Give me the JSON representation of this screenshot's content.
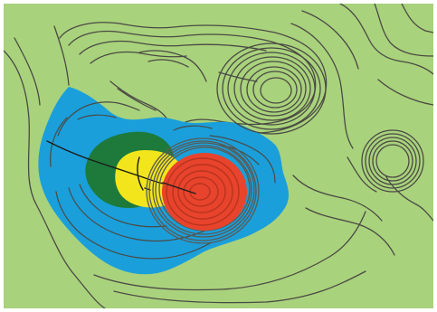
{
  "map": {
    "background_color": "#a9d27c",
    "contour_color": "#4a4a44",
    "zones": [
      {
        "name": "outer-zone",
        "color": "#1a9fdb"
      },
      {
        "name": "green-zone",
        "color": "#1d7a3a"
      },
      {
        "name": "yellow-zone",
        "color": "#f2e51c"
      },
      {
        "name": "red-zone",
        "color": "#e8432c"
      }
    ],
    "features": [
      {
        "name": "central-hill",
        "shape": "concentric-rings"
      },
      {
        "name": "north-hill",
        "shape": "concentric-rings"
      },
      {
        "name": "east-hill",
        "shape": "concentric-rings"
      }
    ]
  }
}
